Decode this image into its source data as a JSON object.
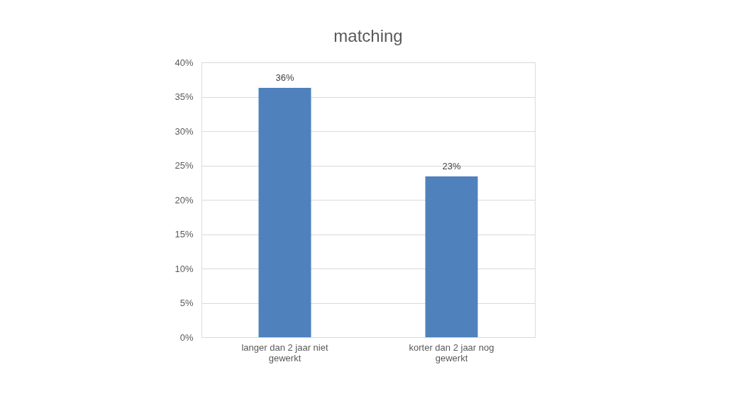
{
  "chart_data": {
    "type": "bar",
    "title": "matching",
    "categories": [
      "langer dan 2 jaar niet gewerkt",
      "korter dan 2 jaar nog gewerkt"
    ],
    "values": [
      36.3,
      23.4
    ],
    "color": "#4f81bd",
    "value_labels": [
      "36%",
      "23%"
    ],
    "ylim": [
      0,
      40
    ],
    "yticks": [
      {
        "value": 0,
        "label": "0%"
      },
      {
        "value": 5,
        "label": "5%"
      },
      {
        "value": 10,
        "label": "10%"
      },
      {
        "value": 15,
        "label": "15%"
      },
      {
        "value": 20,
        "label": "20%"
      },
      {
        "value": 25,
        "label": "25%"
      },
      {
        "value": 30,
        "label": "30%"
      },
      {
        "value": 35,
        "label": "35%"
      },
      {
        "value": 40,
        "label": "40%"
      }
    ],
    "grid": "y"
  }
}
